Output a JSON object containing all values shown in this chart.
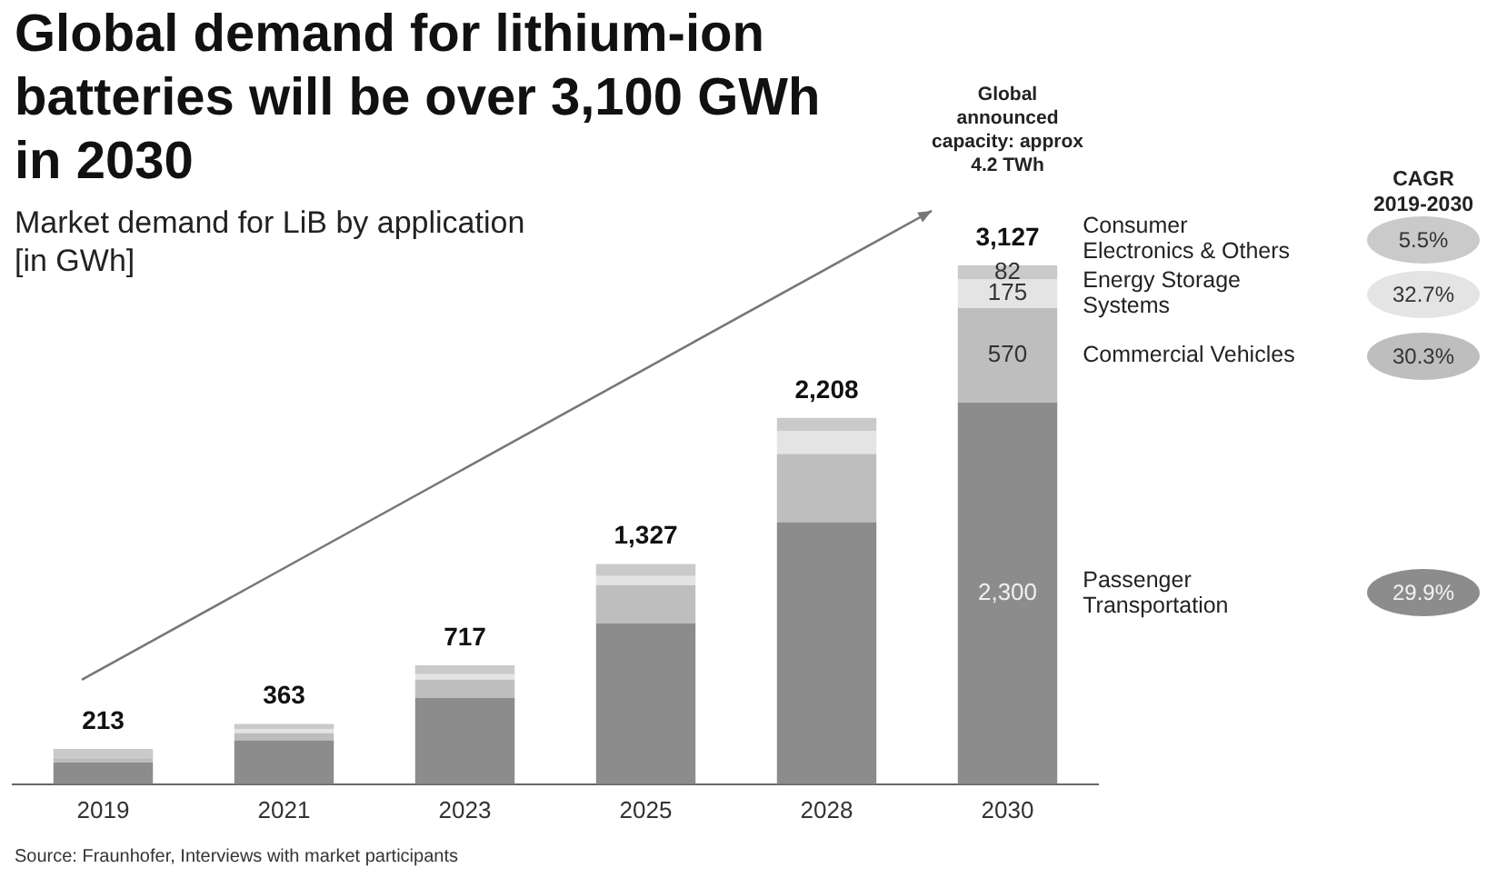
{
  "chart_data": {
    "type": "bar",
    "title": "Global demand for lithium-ion batteries will be over 3,100 GWh in 2030",
    "subtitle": "Market demand for LiB by application\n[in GWh]",
    "stacked": true,
    "legend": false,
    "grid": false,
    "categories": [
      "2019",
      "2021",
      "2023",
      "2025",
      "2028",
      "2030"
    ],
    "series": [
      {
        "name": "Passenger Transportation",
        "color": "#8c8c8c",
        "values": [
          130,
          265,
          520,
          970,
          1580,
          2300
        ],
        "value_labels": [
          null,
          null,
          null,
          null,
          null,
          "2,300"
        ]
      },
      {
        "name": "Commercial Vehicles",
        "color": "#bebebe",
        "values": [
          31,
          44,
          110,
          230,
          410,
          570
        ],
        "value_labels": [
          null,
          null,
          null,
          null,
          null,
          "570"
        ]
      },
      {
        "name": "Energy Storage Systems",
        "color": "#e4e4e4",
        "values": [
          null,
          22,
          33,
          55,
          140,
          175
        ],
        "value_labels": [
          null,
          null,
          null,
          null,
          null,
          "175"
        ]
      },
      {
        "name": "Consumer Electronics & Others",
        "color": "#cacaca",
        "values": [
          52,
          32,
          54,
          72,
          78,
          82
        ],
        "value_labels": [
          null,
          null,
          null,
          null,
          null,
          "82"
        ]
      }
    ],
    "totals": [
      "213",
      "363",
      "717",
      "1,327",
      "2,208",
      "3,127"
    ],
    "annotations": [
      "Global announced capacity: approx 4.2 TWh",
      "CAGR 2019-2030",
      "29.9%",
      "30.3%",
      "32.7%",
      "5.5%",
      "Source: Fraunhofer, Interviews with market participants"
    ]
  }
}
